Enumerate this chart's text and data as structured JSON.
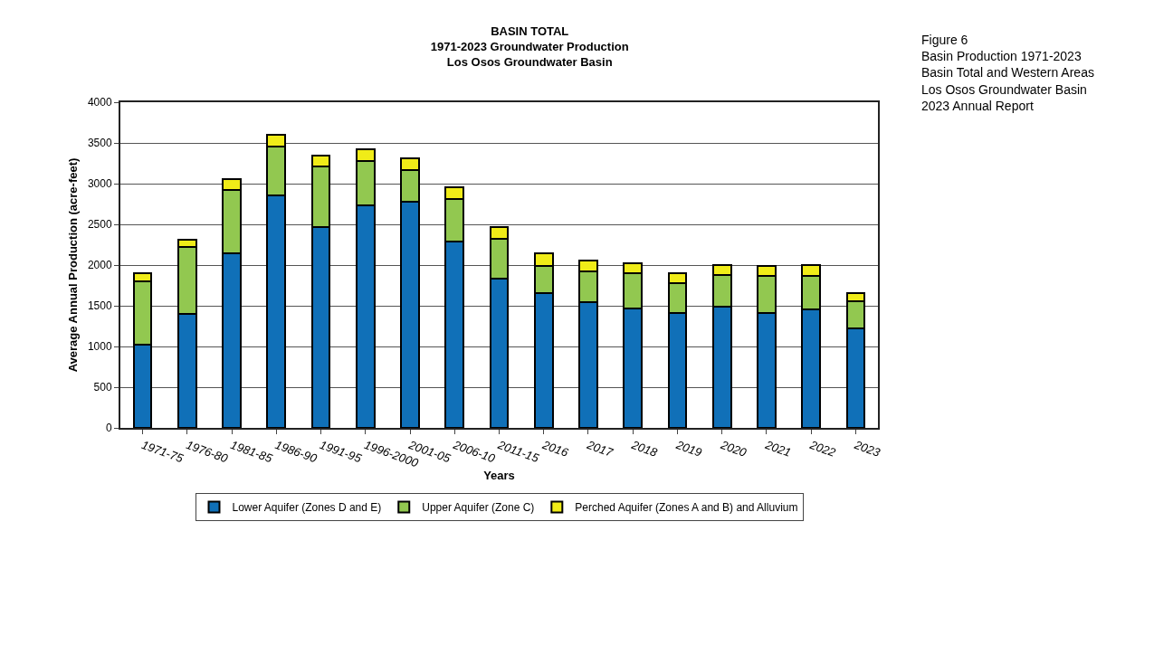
{
  "chart_data": {
    "type": "bar",
    "stacked": true,
    "title": "BASIN TOTAL\n1971-2023 Groundwater Production\nLos Osos Groundwater Basin",
    "xlabel": "Years",
    "ylabel": "Average Annual Production (acre-feet)",
    "categories": [
      "1971-75",
      "1976-80",
      "1981-85",
      "1986-90",
      "1991-95",
      "1996-2000",
      "2001-05",
      "2006-10",
      "2011-15",
      "2016",
      "2017",
      "2018",
      "2019",
      "2020",
      "2021",
      "2022",
      "2023"
    ],
    "series": [
      {
        "name": "Lower Aquifer (Zones D and E)",
        "color": "#1070b8",
        "values": [
          1025,
          1400,
          2150,
          2860,
          2465,
          2730,
          2780,
          2290,
          1830,
          1655,
          1540,
          1470,
          1410,
          1490,
          1410,
          1460,
          1220
        ]
      },
      {
        "name": "Upper Aquifer (Zone C)",
        "color": "#92c850",
        "values": [
          775,
          820,
          775,
          600,
          745,
          545,
          390,
          525,
          490,
          335,
          380,
          425,
          365,
          385,
          455,
          410,
          340
        ]
      },
      {
        "name": "Perched Aquifer (Zones A and B) and Alluvium",
        "color": "#f0ec18",
        "values": [
          105,
          90,
          130,
          145,
          135,
          145,
          145,
          145,
          145,
          155,
          140,
          130,
          130,
          130,
          125,
          135,
          95
        ]
      }
    ],
    "ylim": [
      0,
      4000
    ],
    "yticks": [
      0,
      500,
      1000,
      1500,
      2000,
      2500,
      3000,
      3500,
      4000
    ],
    "grid": "y",
    "legend": "bottom",
    "annotations": [
      "Figure 6\nBasin Production 1971-2023\nBasin Total and Western Areas\nLos Osos Groundwater Basin\n2023 Annual Report"
    ]
  }
}
